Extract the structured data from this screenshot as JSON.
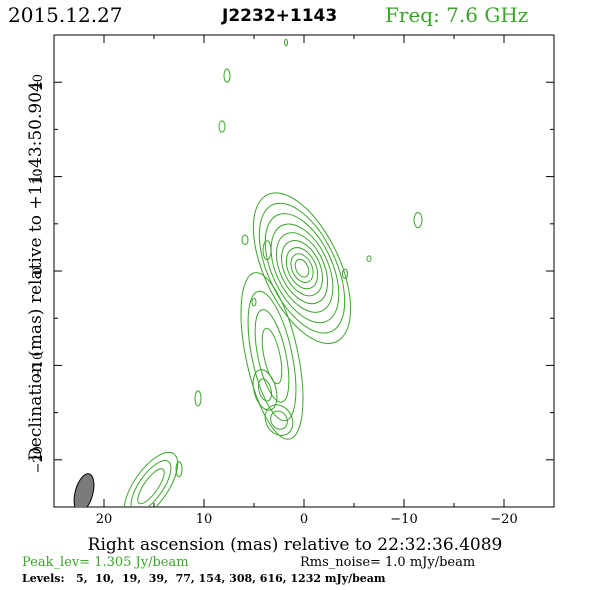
{
  "header": {
    "date": "2015.12.27",
    "source": "J2232+1143",
    "freq": "Freq: 7.6 GHz"
  },
  "colors": {
    "contour": "#3aa629",
    "green_text": "#3aa629",
    "text": "#000000",
    "beam_fill": "#7a7a7a"
  },
  "chart_data": {
    "type": "contour",
    "xlabel": "Right ascension (mas) relative to 22:32:36.4089",
    "ylabel": "Declination (mas) relative to +11:43:50.904",
    "xlim": [
      25,
      -25
    ],
    "ylim": [
      -25,
      25
    ],
    "x_ticks": [
      20,
      10,
      0,
      -10,
      -20
    ],
    "x_tick_labels": [
      "20",
      "10",
      "0",
      "−10",
      "−20"
    ],
    "y_ticks": [
      20,
      10,
      0,
      -10,
      -20
    ],
    "y_tick_labels": [
      "20",
      "10",
      "0",
      "−10",
      "−20"
    ],
    "peak_label": "Peak_lev=  1.305 Jy/beam",
    "rms_label": "Rms_noise=  1.0 mJy/beam",
    "levels_label": "Levels:   5,  10,  19,  39,  77, 154, 308, 616, 1232 mJy/beam",
    "levels_mJy": [
      5,
      10,
      19,
      39,
      77,
      154,
      308,
      616,
      1232
    ],
    "beam": {
      "x": 22,
      "y": -23.5,
      "major_mas": 2.6,
      "minor_mas": 1.1,
      "pa_deg": 15
    },
    "features": [
      {
        "kind": "core",
        "x": 0.2,
        "y": 0.3,
        "rx": [
          0.6,
          1.0,
          1.4,
          1.8,
          2.2,
          2.6,
          3.0,
          3.4,
          3.8
        ],
        "ry": [
          1.0,
          1.6,
          2.3,
          3.1,
          4.0,
          5.0,
          6.2,
          7.4,
          8.6
        ],
        "angle_deg": -25
      },
      {
        "kind": "jet",
        "x": 3.2,
        "y": -9.0,
        "rx": [
          0.8,
          1.4,
          2.0,
          2.6
        ],
        "ry": [
          3.0,
          5.0,
          7.0,
          9.0
        ],
        "angle_deg": -12
      },
      {
        "kind": "knot",
        "x": 3.9,
        "y": -12.6,
        "rx": [
          0.6,
          1.1
        ],
        "ry": [
          1.2,
          2.2
        ],
        "angle_deg": -15
      },
      {
        "kind": "knot",
        "x": 2.5,
        "y": -15.8,
        "rx": [
          0.8,
          1.3
        ],
        "ry": [
          1.0,
          1.7
        ],
        "angle_deg": -30
      },
      {
        "kind": "knot",
        "x": 15.3,
        "y": -22.8,
        "rx": [
          0.7,
          1.2,
          1.7
        ],
        "ry": [
          2.2,
          3.2,
          4.2
        ],
        "angle_deg": 35
      },
      {
        "kind": "knot",
        "x": 12.5,
        "y": -21.0,
        "rx": [
          0.3
        ],
        "ry": [
          0.8
        ],
        "angle_deg": 0
      },
      {
        "kind": "knot",
        "x": 10.6,
        "y": -13.5,
        "rx": [
          0.3
        ],
        "ry": [
          0.8
        ],
        "angle_deg": 0
      },
      {
        "kind": "knot",
        "x": 3.7,
        "y": 2.2,
        "rx": [
          0.4
        ],
        "ry": [
          1.0
        ],
        "angle_deg": 0
      },
      {
        "kind": "knot",
        "x": 5.9,
        "y": 3.3,
        "rx": [
          0.3
        ],
        "ry": [
          0.5
        ],
        "angle_deg": 0
      },
      {
        "kind": "knot",
        "x": 5.0,
        "y": -3.3,
        "rx": [
          0.2
        ],
        "ry": [
          0.4
        ],
        "angle_deg": 0
      },
      {
        "kind": "knot",
        "x": -4.1,
        "y": -0.3,
        "rx": [
          0.25
        ],
        "ry": [
          0.5
        ],
        "angle_deg": 0
      },
      {
        "kind": "knot",
        "x": -6.5,
        "y": 1.3,
        "rx": [
          0.2
        ],
        "ry": [
          0.3
        ],
        "angle_deg": 0
      },
      {
        "kind": "knot",
        "x": -11.4,
        "y": 5.4,
        "rx": [
          0.4
        ],
        "ry": [
          0.8
        ],
        "angle_deg": 0
      },
      {
        "kind": "knot",
        "x": 8.2,
        "y": 15.3,
        "rx": [
          0.3
        ],
        "ry": [
          0.6
        ],
        "angle_deg": 0
      },
      {
        "kind": "knot",
        "x": 7.7,
        "y": 20.7,
        "rx": [
          0.3
        ],
        "ry": [
          0.7
        ],
        "angle_deg": 0
      },
      {
        "kind": "knot",
        "x": 1.8,
        "y": 24.2,
        "rx": [
          0.15
        ],
        "ry": [
          0.35
        ],
        "angle_deg": 0
      }
    ]
  }
}
